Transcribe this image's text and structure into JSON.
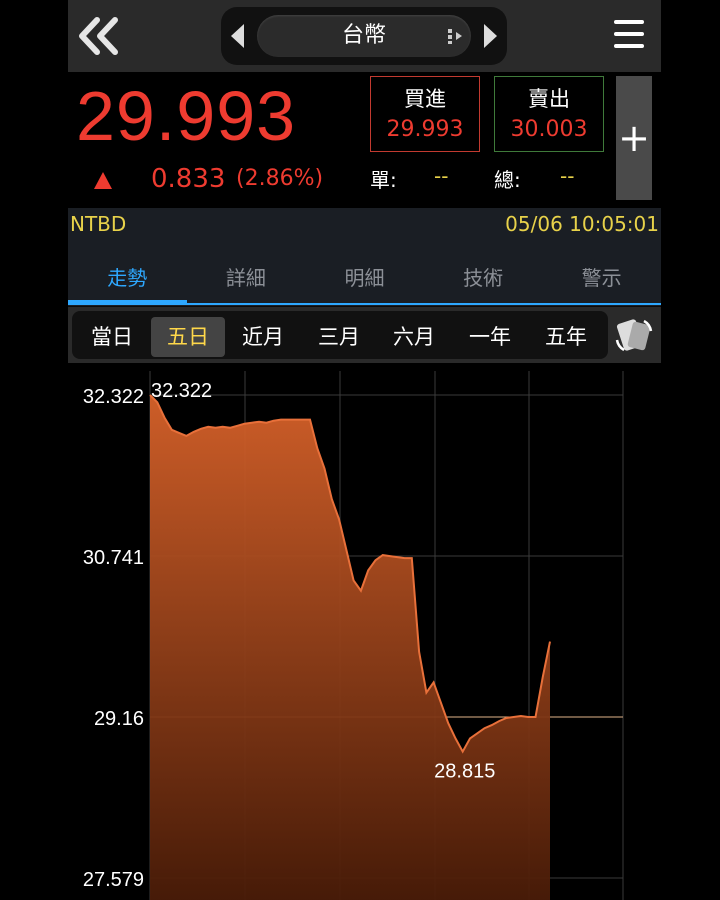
{
  "header": {
    "title": "台幣",
    "back_icon": "double-chevron-left-icon",
    "menu_icon": "hamburger-menu-icon"
  },
  "quote": {
    "price": "29.993",
    "change": "0.833",
    "change_pct": "(2.86%)",
    "direction_icon": "triangle-up-icon",
    "buy_label": "買進",
    "buy_value": "29.993",
    "sell_label": "賣出",
    "sell_value": "30.003",
    "unit_label": "單:",
    "unit_value": "--",
    "total_label": "總:",
    "total_value": "--",
    "add_label": "+"
  },
  "info": {
    "code": "NTBD",
    "datetime": "05/06 10:05:01"
  },
  "tabs": [
    {
      "label": "走勢",
      "active": true
    },
    {
      "label": "詳細",
      "active": false
    },
    {
      "label": "明細",
      "active": false
    },
    {
      "label": "技術",
      "active": false
    },
    {
      "label": "警示",
      "active": false
    }
  ],
  "ranges": [
    {
      "label": "當日",
      "selected": false
    },
    {
      "label": "五日",
      "selected": true
    },
    {
      "label": "近月",
      "selected": false
    },
    {
      "label": "三月",
      "selected": false
    },
    {
      "label": "六月",
      "selected": false
    },
    {
      "label": "一年",
      "selected": false
    },
    {
      "label": "五年",
      "selected": false
    }
  ],
  "colors": {
    "up": "#ee3b30",
    "accent": "#2ea8ff",
    "highlight": "#e8d24a",
    "line": "#e8703a"
  },
  "chart_data": {
    "type": "area",
    "y_ticks": [
      "32.322",
      "30.741",
      "29.16",
      "27.579"
    ],
    "ylim": [
      27.579,
      32.322
    ],
    "reference_value": 29.16,
    "max_label": "32.322",
    "min_label": "28.815",
    "values": [
      32.322,
      32.25,
      32.1,
      31.98,
      31.95,
      31.92,
      31.96,
      31.99,
      32.01,
      32.0,
      32.01,
      32.0,
      32.02,
      32.04,
      32.05,
      32.06,
      32.05,
      32.07,
      32.08,
      32.08,
      32.08,
      32.08,
      32.08,
      31.8,
      31.6,
      31.3,
      31.1,
      30.8,
      30.5,
      30.4,
      30.6,
      30.7,
      30.75,
      30.74,
      30.73,
      30.72,
      30.72,
      29.8,
      29.4,
      29.5,
      29.3,
      29.1,
      28.95,
      28.82,
      28.95,
      29.0,
      29.05,
      29.08,
      29.12,
      29.15,
      29.16,
      29.17,
      29.16,
      29.16,
      29.55,
      29.9
    ]
  }
}
